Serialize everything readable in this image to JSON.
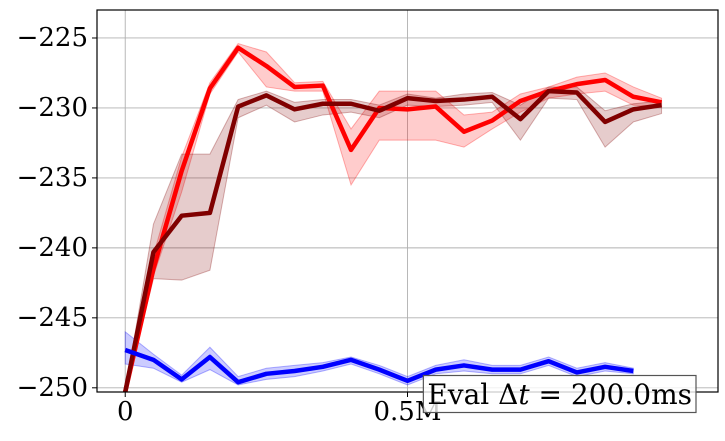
{
  "chart_data": {
    "type": "line",
    "title": "",
    "xlabel": "",
    "ylabel": "",
    "xlim": [
      -0.05,
      1.05
    ],
    "ylim": [
      -250.3,
      -223.0
    ],
    "grid": true,
    "x_ticks": [
      {
        "value": 0,
        "label": "0"
      },
      {
        "value": 0.5,
        "label": "0.5M"
      }
    ],
    "y_ticks": [
      {
        "value": -225,
        "label": "−225"
      },
      {
        "value": -230,
        "label": "−230"
      },
      {
        "value": -235,
        "label": "−235"
      },
      {
        "value": -240,
        "label": "−240"
      },
      {
        "value": -245,
        "label": "−245"
      },
      {
        "value": -250,
        "label": "−250"
      }
    ],
    "x": [
      0,
      0.05,
      0.1,
      0.15,
      0.2,
      0.25,
      0.3,
      0.35,
      0.4,
      0.45,
      0.5,
      0.55,
      0.6,
      0.65,
      0.7,
      0.75,
      0.8,
      0.85,
      0.9,
      0.95,
      1.0
    ],
    "series": [
      {
        "color": "#ff0000",
        "band_color": "#ff0000",
        "values": [
          -250.3,
          -241.5,
          -234.5,
          -228.6,
          -225.7,
          -227.0,
          -228.5,
          -228.4,
          -233.0,
          -230.0,
          -230.1,
          -229.9,
          -231.7,
          -230.9,
          -229.5,
          -228.8,
          -228.3,
          -228.0,
          -229.2,
          -229.6,
          null
        ],
        "lower": [
          -250.3,
          -242.0,
          -236.0,
          -229.0,
          -226.0,
          -228.5,
          -228.8,
          -228.8,
          -235.5,
          -232.3,
          -232.3,
          -232.3,
          -232.8,
          -231.5,
          -230.3,
          -229.3,
          -229.0,
          -228.8,
          -229.8,
          -229.9,
          null
        ],
        "upper": [
          -250.3,
          -240.5,
          -233.5,
          -228.2,
          -225.4,
          -226.0,
          -228.2,
          -228.1,
          -231.5,
          -228.8,
          -228.8,
          -228.8,
          -230.5,
          -230.3,
          -229.0,
          -228.5,
          -227.8,
          -227.5,
          -228.5,
          -229.3,
          null
        ]
      },
      {
        "color": "#800000",
        "band_color": "#800000",
        "values": [
          -250.3,
          -240.3,
          -237.7,
          -237.5,
          -229.9,
          -229.1,
          -230.1,
          -229.7,
          -229.7,
          -230.2,
          -229.3,
          -229.5,
          -229.4,
          -229.2,
          -230.8,
          -228.8,
          -228.9,
          -231.0,
          -230.1,
          -229.8,
          null
        ],
        "lower": [
          -250.3,
          -242.2,
          -242.3,
          -241.6,
          -230.7,
          -229.8,
          -231.0,
          -230.5,
          -230.3,
          -230.7,
          -229.8,
          -229.9,
          -229.8,
          -229.6,
          -232.3,
          -229.3,
          -229.4,
          -232.8,
          -231.0,
          -230.4,
          null
        ],
        "upper": [
          -250.3,
          -238.3,
          -233.3,
          -233.3,
          -229.4,
          -228.8,
          -229.6,
          -229.4,
          -229.4,
          -229.8,
          -229.0,
          -229.3,
          -229.0,
          -228.9,
          -229.8,
          -228.5,
          -228.5,
          -230.2,
          -229.7,
          -229.5,
          null
        ]
      },
      {
        "color": "#0000ff",
        "band_color": "#0000ff",
        "values": [
          -247.3,
          -248.0,
          -249.4,
          -247.8,
          -249.6,
          -249.0,
          -248.8,
          -248.5,
          -248.0,
          -248.7,
          -249.5,
          -248.7,
          -248.4,
          -248.7,
          -248.7,
          -248.1,
          -248.9,
          -248.5,
          -248.8,
          null,
          null
        ],
        "lower": [
          -248.3,
          -248.6,
          -249.6,
          -248.7,
          -249.8,
          -249.4,
          -249.2,
          -248.8,
          -248.3,
          -249.0,
          -249.8,
          -249.0,
          -248.8,
          -249.0,
          -249.0,
          -248.4,
          -249.2,
          -248.8,
          -249.0,
          null,
          null
        ],
        "upper": [
          -246.0,
          -247.6,
          -249.1,
          -247.1,
          -249.2,
          -248.6,
          -248.4,
          -248.2,
          -247.8,
          -248.4,
          -249.2,
          -248.4,
          -248.0,
          -248.4,
          -248.4,
          -247.8,
          -248.6,
          -248.2,
          -248.6,
          null,
          null
        ]
      }
    ],
    "annotation": {
      "prefix": "Eval Δ",
      "var": "t",
      "suffix": " = 200.0ms",
      "placement": "bottom-right"
    }
  }
}
